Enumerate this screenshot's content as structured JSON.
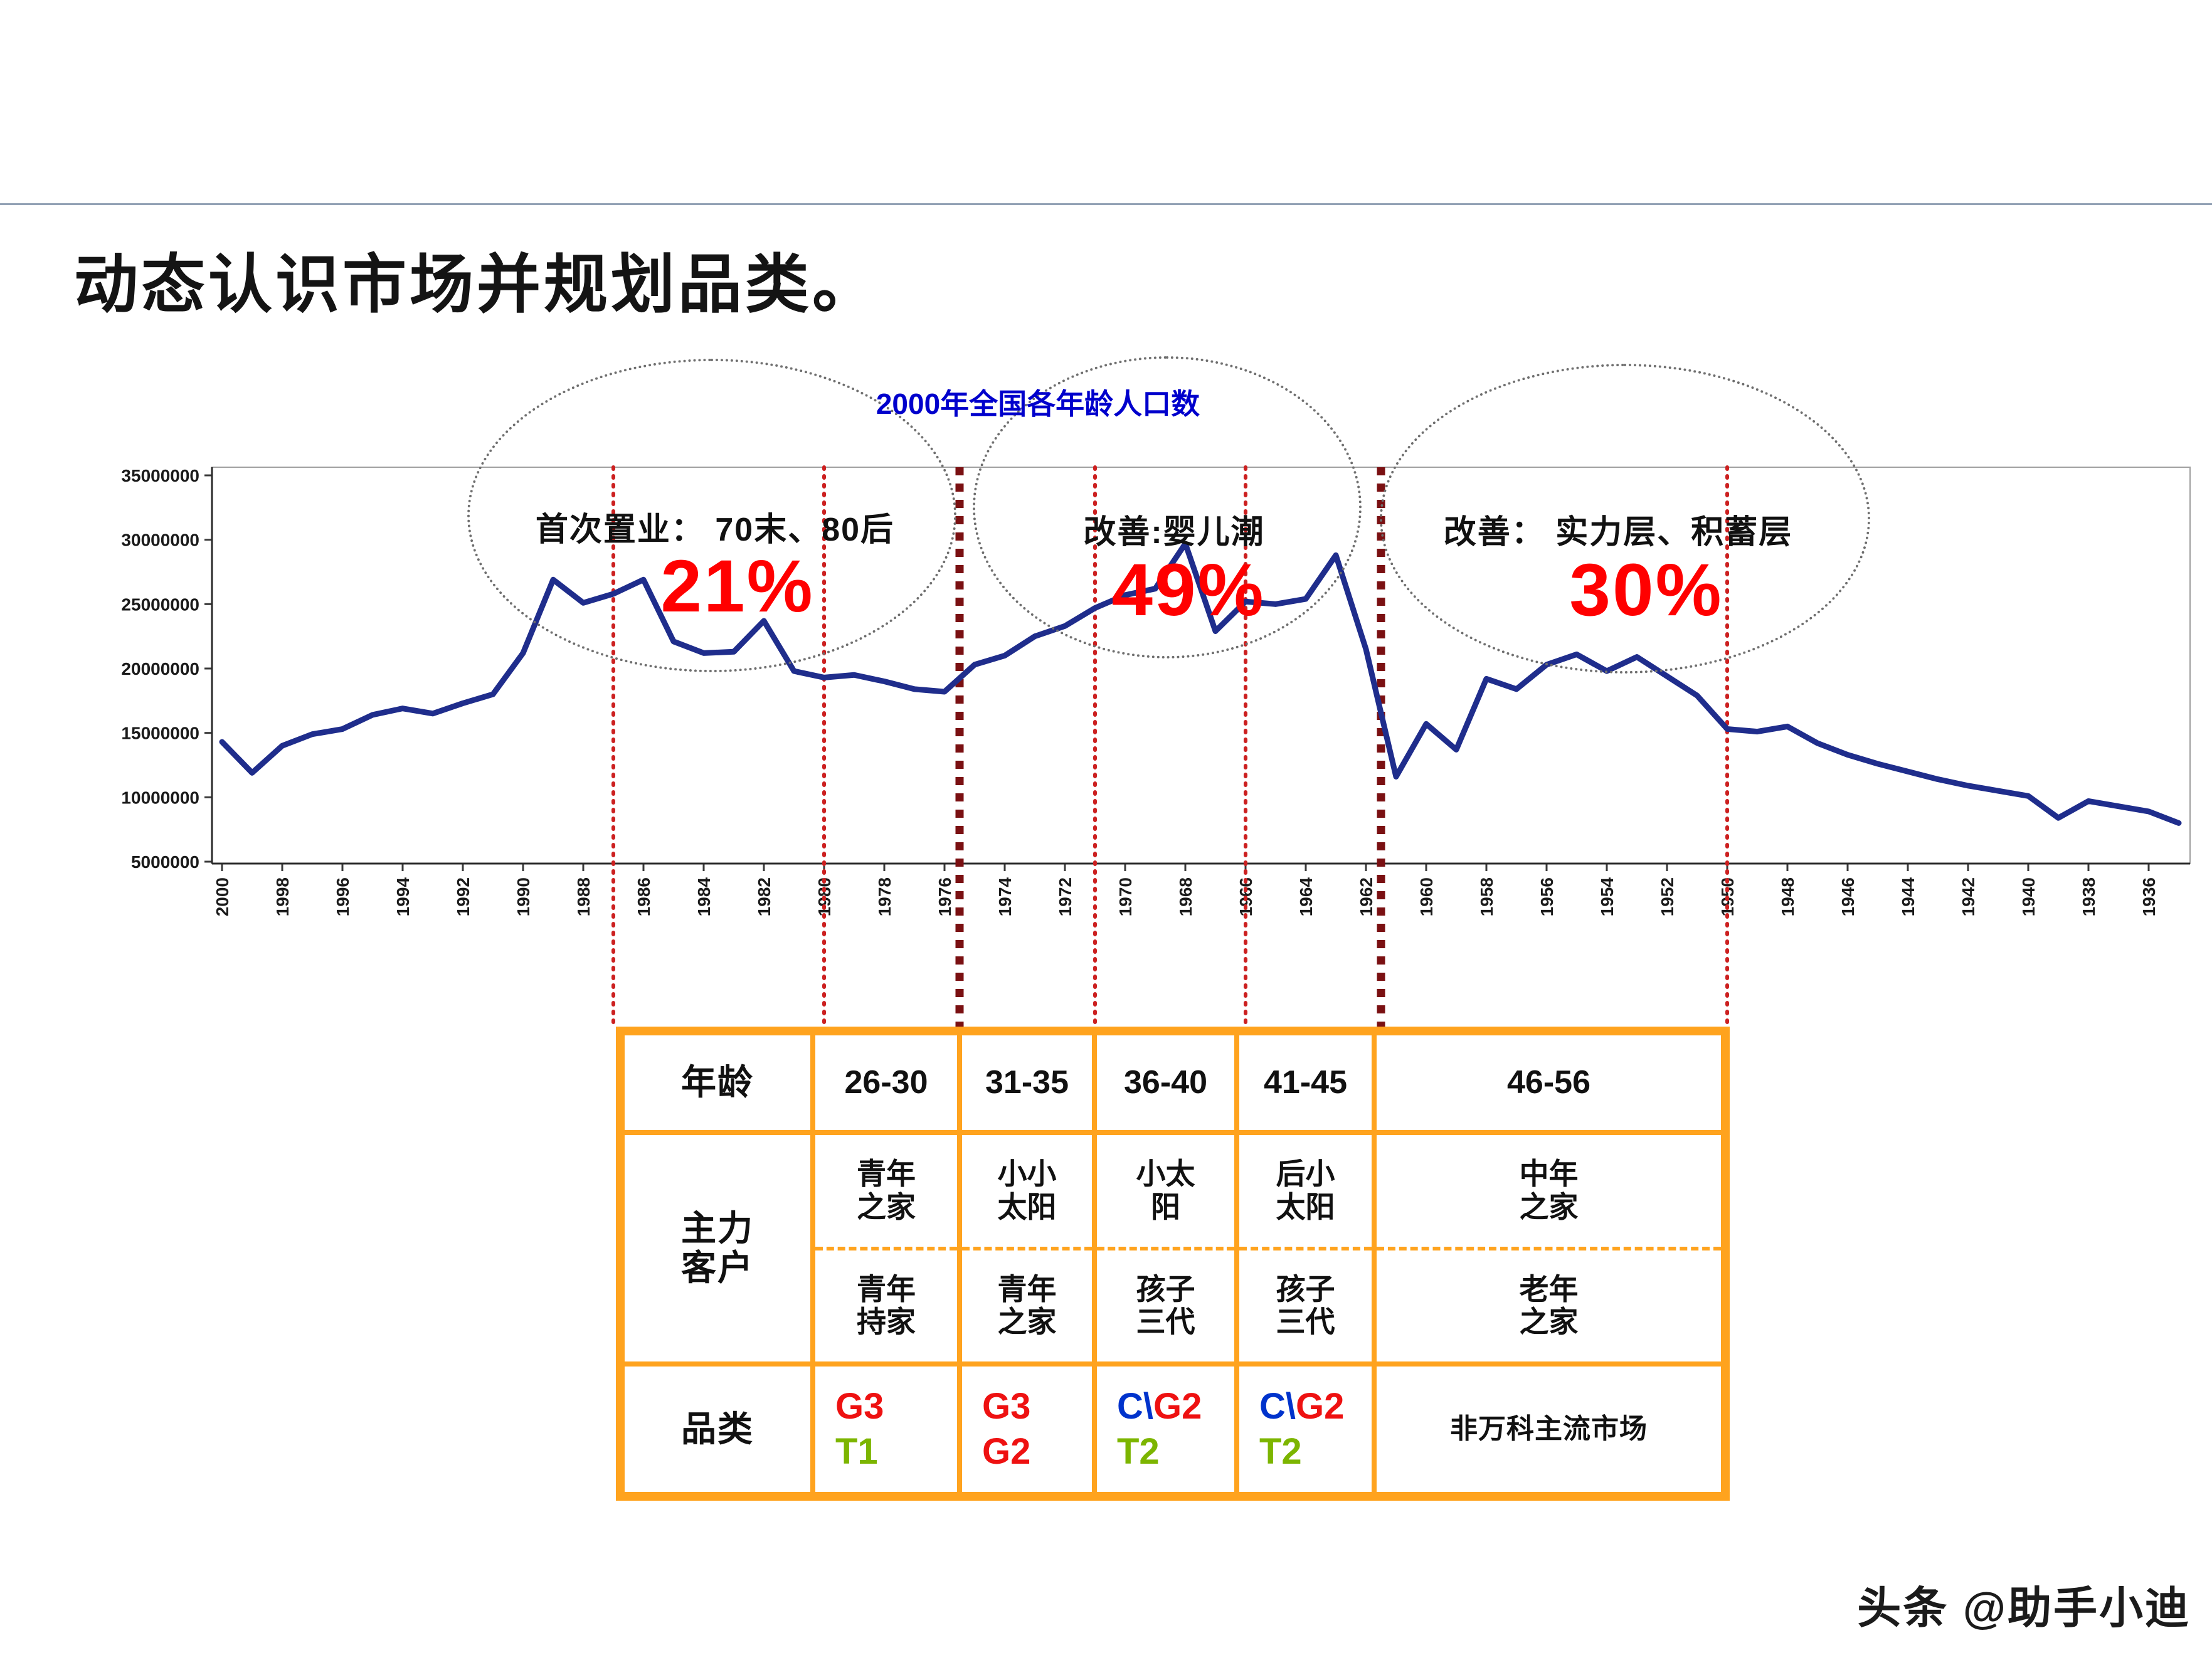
{
  "slide": {
    "title": "动态认识市场并规划品类。",
    "watermark": "头条 @助手小迪"
  },
  "colors": {
    "line": "#1f2d8c",
    "chart_title": "#0000cc",
    "percent": "#ff0000",
    "divider_thin": "#cc2020",
    "divider_thick": "#7a1012",
    "table_border": "#ffa31e",
    "cat_red": "#ee1111",
    "cat_green": "#7cb500",
    "cat_blue": "#0033cc"
  },
  "chart_data": {
    "type": "line",
    "title": "2000年全国各年龄人口数",
    "xlabel": "",
    "ylabel": "",
    "legend": "none",
    "grid": false,
    "ylim": [
      5000000,
      35000000
    ],
    "ytick_step": 5000000,
    "yticks": [
      "35000000",
      "30000000",
      "25000000",
      "20000000",
      "15000000",
      "10000000",
      "5000000"
    ],
    "x": [
      2000,
      1999,
      1998,
      1997,
      1996,
      1995,
      1994,
      1993,
      1992,
      1991,
      1990,
      1989,
      1988,
      1987,
      1986,
      1985,
      1984,
      1983,
      1982,
      1981,
      1980,
      1979,
      1978,
      1977,
      1976,
      1975,
      1974,
      1973,
      1972,
      1971,
      1970,
      1969,
      1968,
      1967,
      1966,
      1965,
      1964,
      1963,
      1962,
      1961,
      1960,
      1959,
      1958,
      1957,
      1956,
      1955,
      1954,
      1953,
      1952,
      1951,
      1950,
      1949,
      1948,
      1947,
      1946,
      1945,
      1944,
      1943,
      1942,
      1941,
      1940,
      1939,
      1938,
      1937,
      1936,
      1935
    ],
    "values": [
      14300000,
      11900000,
      14000000,
      14900000,
      15300000,
      16400000,
      16900000,
      16500000,
      17300000,
      18000000,
      21200000,
      26900000,
      25100000,
      25800000,
      26900000,
      22100000,
      21200000,
      21300000,
      23700000,
      19800000,
      19300000,
      19500000,
      19000000,
      18400000,
      18200000,
      20300000,
      21000000,
      22500000,
      23300000,
      24700000,
      25700000,
      26200000,
      29700000,
      22900000,
      25200000,
      25000000,
      25400000,
      28800000,
      21500000,
      11600000,
      15700000,
      13700000,
      19200000,
      18400000,
      20300000,
      21100000,
      19800000,
      20900000,
      19400000,
      17900000,
      15300000,
      15100000,
      15500000,
      14200000,
      13300000,
      12600000,
      12000000,
      11400000,
      10900000,
      10500000,
      10100000,
      8400000,
      9700000,
      9300000,
      8900000,
      8000000
    ],
    "xtick_labels": [
      "2000",
      "1998",
      "1996",
      "1994",
      "1992",
      "1990",
      "1988",
      "1986",
      "1984",
      "1982",
      "1980",
      "1978",
      "1976",
      "1974",
      "1972",
      "1970",
      "1968",
      "1966",
      "1964",
      "1962",
      "1960",
      "1958",
      "1956",
      "1954",
      "1952",
      "1950",
      "1948",
      "1946",
      "1944",
      "1942",
      "1940",
      "1938",
      "1936"
    ],
    "dividers": [
      {
        "year": 1987,
        "style": "thin"
      },
      {
        "year": 1980,
        "style": "thin"
      },
      {
        "year": 1975.5,
        "style": "thick"
      },
      {
        "year": 1971,
        "style": "thin"
      },
      {
        "year": 1966,
        "style": "thin"
      },
      {
        "year": 1961.5,
        "style": "thick"
      },
      {
        "year": 1950,
        "style": "thin"
      }
    ],
    "annotations": [
      {
        "label": "首次置业： 70末、80后",
        "percent": "21%"
      },
      {
        "label": "改善:婴儿潮",
        "percent": "49%"
      },
      {
        "label": "改善： 实力层、积蓄层",
        "percent": "30%"
      }
    ]
  },
  "table": {
    "age_header": "年龄",
    "age_cols": [
      "26-30",
      "31-35",
      "36-40",
      "41-45",
      "46-56"
    ],
    "main_header": "主力\n客户",
    "main_top": [
      "青年\n之家",
      "小小\n太阳",
      "小太\n阳",
      "后小\n太阳",
      "中年\n之家"
    ],
    "main_bottom": [
      "青年\n持家",
      "青年\n之家",
      "孩子\n三代",
      "孩子\n三代",
      "老年\n之家"
    ],
    "category_header": "品类",
    "category": {
      "c1_l1": "G3",
      "c1_l2": "T1",
      "c2_l1": "G3",
      "c2_l2": "G2",
      "c3_l1a": "C\\",
      "c3_l1b": "G2",
      "c3_l2": "T2",
      "c4_l1a": "C\\",
      "c4_l1b": "G2",
      "c4_l2": "T2",
      "c5": "非万科主流市场"
    }
  }
}
